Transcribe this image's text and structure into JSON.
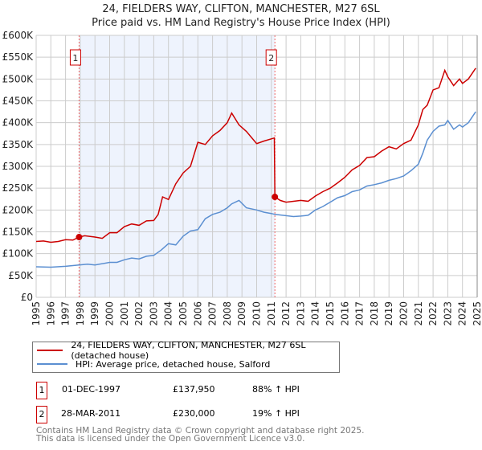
{
  "title": "24, FIELDERS WAY, CLIFTON, MANCHESTER, M27 6SL",
  "subtitle": "Price paid vs. HM Land Registry's House Price Index (HPI)",
  "chart_data": {
    "type": "line",
    "title": "24, FIELDERS WAY, CLIFTON, MANCHESTER, M27 6SL",
    "subtitle": "Price paid vs. HM Land Registry's House Price Index (HPI)",
    "xlim": [
      1995,
      2025
    ],
    "ylim": [
      0,
      600000
    ],
    "x_ticks": [
      "1995",
      "1996",
      "1997",
      "1998",
      "1999",
      "2000",
      "2001",
      "2002",
      "2003",
      "2004",
      "2005",
      "2006",
      "2007",
      "2008",
      "2009",
      "2010",
      "2011",
      "2012",
      "2013",
      "2014",
      "2015",
      "2016",
      "2017",
      "2018",
      "2019",
      "2020",
      "2021",
      "2022",
      "2023",
      "2024",
      "2025"
    ],
    "y_ticks": [
      {
        "v": 0,
        "l": "£0"
      },
      {
        "v": 50000,
        "l": "£50K"
      },
      {
        "v": 100000,
        "l": "£100K"
      },
      {
        "v": 150000,
        "l": "£150K"
      },
      {
        "v": 200000,
        "l": "£200K"
      },
      {
        "v": 250000,
        "l": "£250K"
      },
      {
        "v": 300000,
        "l": "£300K"
      },
      {
        "v": 350000,
        "l": "£350K"
      },
      {
        "v": 400000,
        "l": "£400K"
      },
      {
        "v": 450000,
        "l": "£450K"
      },
      {
        "v": 500000,
        "l": "£500K"
      },
      {
        "v": 550000,
        "l": "£550K"
      },
      {
        "v": 600000,
        "l": "£600K"
      }
    ],
    "grid": true,
    "shaded_range": [
      1997.92,
      2011.24
    ],
    "series": [
      {
        "name": "24, FIELDERS WAY, CLIFTON, MANCHESTER, M27 6SL (detached house)",
        "color": "#cc0000",
        "x": [
          1995,
          1995.5,
          1996,
          1996.5,
          1997,
          1997.5,
          1997.92,
          1998.3,
          1999,
          1999.5,
          2000,
          2000.5,
          2001,
          2001.5,
          2002,
          2002.5,
          2003,
          2003.3,
          2003.6,
          2004,
          2004.5,
          2005,
          2005.5,
          2006,
          2006.5,
          2007,
          2007.5,
          2008,
          2008.3,
          2008.8,
          2009.3,
          2010,
          2010.5,
          2011.2,
          2011.24,
          2011.6,
          2012,
          2012.5,
          2013,
          2013.5,
          2014,
          2014.5,
          2015,
          2015.5,
          2016,
          2016.5,
          2017,
          2017.5,
          2018,
          2018.5,
          2019,
          2019.5,
          2020,
          2020.5,
          2021,
          2021.3,
          2021.6,
          2022,
          2022.4,
          2022.8,
          2023,
          2023.4,
          2023.8,
          2024,
          2024.4,
          2024.9
        ],
        "y": [
          128000,
          129000,
          126000,
          128000,
          132000,
          131000,
          137950,
          141000,
          138000,
          135000,
          148000,
          148000,
          162000,
          168000,
          165000,
          175000,
          176000,
          190000,
          230000,
          224000,
          260000,
          285000,
          300000,
          355000,
          350000,
          370000,
          382000,
          400000,
          422000,
          395000,
          380000,
          352000,
          358000,
          365000,
          230000,
          222000,
          218000,
          220000,
          222000,
          220000,
          232000,
          242000,
          250000,
          262000,
          275000,
          292000,
          302000,
          320000,
          322000,
          335000,
          345000,
          340000,
          352000,
          360000,
          395000,
          430000,
          440000,
          475000,
          480000,
          520000,
          505000,
          485000,
          500000,
          490000,
          500000,
          525000
        ]
      },
      {
        "name": "HPI: Average price, detached house, Salford",
        "color": "#5b8fd1",
        "x": [
          1995,
          1996,
          1997,
          1997.92,
          1998.5,
          1999,
          2000,
          2000.5,
          2001,
          2001.5,
          2002,
          2002.5,
          2003,
          2003.5,
          2004,
          2004.5,
          2005,
          2005.5,
          2006,
          2006.5,
          2007,
          2007.5,
          2008,
          2008.3,
          2008.8,
          2009.3,
          2010,
          2010.5,
          2011,
          2011.24,
          2012,
          2012.5,
          2013,
          2013.5,
          2014,
          2014.5,
          2015,
          2015.5,
          2016,
          2016.5,
          2017,
          2017.5,
          2018,
          2018.5,
          2019,
          2019.5,
          2020,
          2020.5,
          2021,
          2021.3,
          2021.6,
          2022,
          2022.4,
          2022.8,
          2023,
          2023.4,
          2023.8,
          2024,
          2024.4,
          2024.9
        ],
        "y": [
          70000,
          69000,
          71000,
          74000,
          76000,
          74000,
          80000,
          80000,
          86000,
          90000,
          88000,
          94000,
          96000,
          108000,
          123000,
          120000,
          140000,
          152000,
          155000,
          180000,
          190000,
          195000,
          205000,
          214000,
          222000,
          205000,
          200000,
          195000,
          192000,
          190000,
          187000,
          185000,
          186000,
          188000,
          200000,
          208000,
          218000,
          228000,
          233000,
          242000,
          246000,
          255000,
          258000,
          262000,
          268000,
          272000,
          278000,
          290000,
          305000,
          330000,
          360000,
          380000,
          392000,
          395000,
          405000,
          385000,
          395000,
          390000,
          400000,
          425000
        ]
      }
    ],
    "annotations": [
      {
        "label": "1",
        "x": 1997.92,
        "value": 137950
      },
      {
        "label": "2",
        "x": 2011.24,
        "value": 230000
      }
    ],
    "legend_position": "bottom"
  },
  "legend": [
    {
      "label": "24, FIELDERS WAY, CLIFTON, MANCHESTER, M27 6SL (detached house)",
      "color": "#cc0000"
    },
    {
      "label": "HPI: Average price, detached house, Salford",
      "color": "#5b8fd1"
    }
  ],
  "sales": [
    {
      "num": "1",
      "date": "01-DEC-1997",
      "price": "£137,950",
      "hpi": "88% ↑ HPI"
    },
    {
      "num": "2",
      "date": "28-MAR-2011",
      "price": "£230,000",
      "hpi": "19% ↑ HPI"
    }
  ],
  "footer": [
    "Contains HM Land Registry data © Crown copyright and database right 2025.",
    "This data is licensed under the Open Government Licence v3.0."
  ]
}
